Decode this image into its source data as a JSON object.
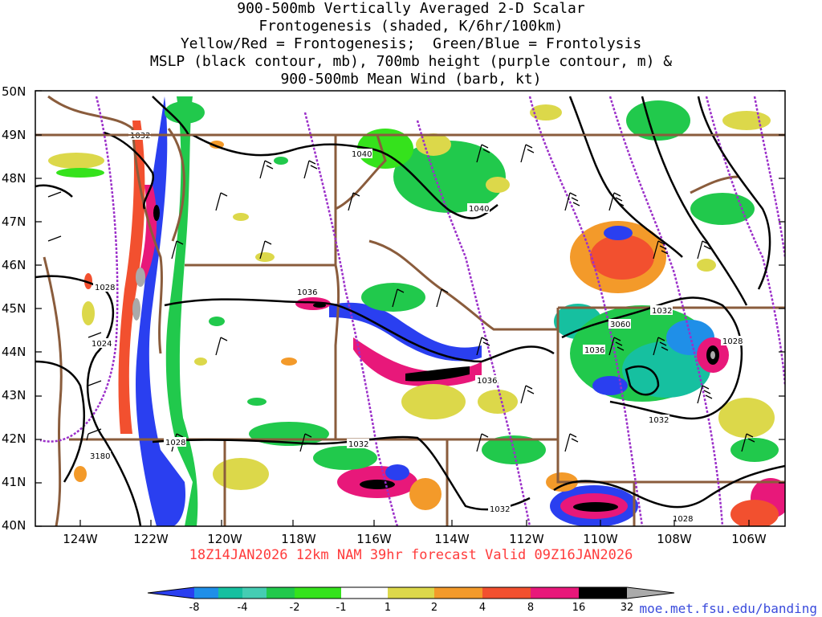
{
  "title_lines": [
    "900-500mb Vertically Averaged 2-D Scalar",
    "Frontogenesis (shaded, K/6hr/100km)",
    "Yellow/Red = Frontogenesis;  Green/Blue = Frontolysis",
    "MSLP (black contour, mb), 700mb height (purple contour, m) &",
    "900-500mb Mean Wind (barb, kt)"
  ],
  "lat_labels": [
    "50N",
    "49N",
    "48N",
    "47N",
    "46N",
    "45N",
    "44N",
    "43N",
    "42N",
    "41N",
    "40N"
  ],
  "lon_labels": [
    "124W",
    "122W",
    "120W",
    "118W",
    "116W",
    "114W",
    "112W",
    "110W",
    "108W",
    "106W"
  ],
  "contour_labels": [
    {
      "text": "1032"
    },
    {
      "text": "1040"
    },
    {
      "text": "1040"
    },
    {
      "text": "1028"
    },
    {
      "text": "1036"
    },
    {
      "text": "1024"
    },
    {
      "text": "1036"
    },
    {
      "text": "1032"
    },
    {
      "text": "3060"
    },
    {
      "text": "1036"
    },
    {
      "text": "1028"
    },
    {
      "text": "1032"
    },
    {
      "text": "1028"
    },
    {
      "text": "1032"
    },
    {
      "text": "3180"
    },
    {
      "text": "1032"
    },
    {
      "text": "1028"
    }
  ],
  "footer": "18Z14JAN2026 12km NAM 39hr forecast Valid 09Z16JAN2026",
  "credit": "moe.met.fsu.edu/banding",
  "colorbar": {
    "ticks": [
      "-8",
      "-4",
      "-2",
      "-1",
      "1",
      "2",
      "4",
      "8",
      "16",
      "32"
    ],
    "colors": [
      "#2a3ff0",
      "#1f8fe8",
      "#16c0a0",
      "#21c94c",
      "#35e21c",
      "#ffffff",
      "#dcd84a",
      "#f39a2a",
      "#f2502f",
      "#e8187a",
      "#000000",
      "#aaaaaa"
    ]
  },
  "colors": {
    "frame": "#000000",
    "state_lines": "#8a5c3c",
    "purple": "#9b2fc9",
    "footer": "#ff3b3b",
    "credit": "#3a4bdc"
  }
}
